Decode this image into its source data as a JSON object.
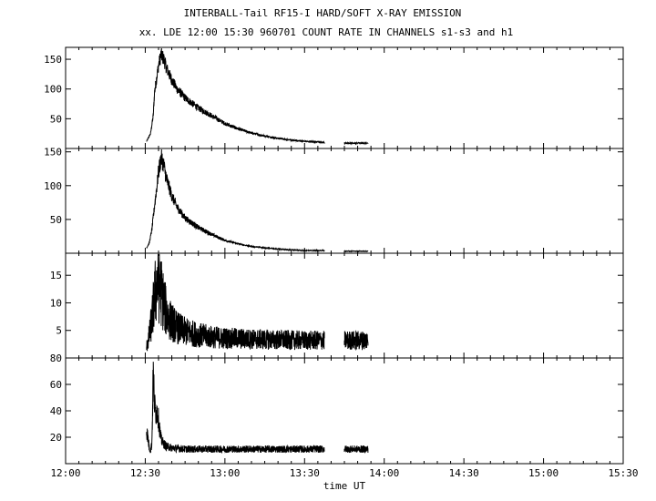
{
  "chart_data": {
    "type": "line",
    "title": "INTERBALL-Tail RF15-I HARD/SOFT X-RAY EMISSION",
    "subtitle": "xx. LDE 12:00 15:30 960701  COUNT RATE IN CHANNELS s1-s3 and h1",
    "xlabel": "time UT",
    "x_ticks": [
      "12:00",
      "12:30",
      "13:00",
      "13:30",
      "14:00",
      "14:30",
      "15:00",
      "15:30"
    ],
    "xlim": [
      0,
      210
    ],
    "x_unit": "minutes after 12:00",
    "data_segments": [
      [
        30.5,
        97.5
      ],
      [
        105,
        114
      ]
    ],
    "panels": [
      {
        "ylim": [
          0,
          170
        ],
        "y_ticks": [
          50,
          100,
          150
        ],
        "series": {
          "x": [
            30.5,
            32,
            33,
            33.5,
            35,
            36,
            37,
            38,
            40,
            42,
            45,
            50,
            55,
            60,
            65,
            70,
            75,
            80,
            85,
            90,
            95,
            97.5,
            105,
            114
          ],
          "y": [
            12,
            25,
            55,
            95,
            140,
            158,
            150,
            135,
            115,
            100,
            85,
            68,
            55,
            42,
            33,
            26,
            21,
            17,
            14,
            12,
            11,
            10,
            9,
            9
          ]
        }
      },
      {
        "ylim": [
          0,
          155
        ],
        "y_ticks": [
          50,
          100,
          150
        ],
        "series": {
          "x": [
            30.5,
            31.5,
            32.5,
            33.5,
            35,
            36,
            37,
            38,
            40,
            42,
            45,
            50,
            55,
            60,
            65,
            70,
            75,
            80,
            85,
            90,
            95,
            97.5,
            105,
            114
          ],
          "y": [
            8,
            15,
            35,
            70,
            120,
            142,
            130,
            110,
            85,
            68,
            52,
            38,
            28,
            19,
            14,
            10,
            8,
            6,
            5,
            4,
            4,
            4,
            3,
            3
          ]
        }
      },
      {
        "ylim": [
          0,
          19
        ],
        "y_ticks": [
          5,
          10,
          15
        ],
        "series": {
          "x": [
            30.5,
            31.5,
            32.5,
            33.5,
            34.5,
            35.5,
            36.5,
            37.5,
            38.5,
            40,
            42,
            45,
            50,
            55,
            60,
            70,
            80,
            90,
            97.5,
            105,
            114
          ],
          "y": [
            2,
            4,
            7,
            11,
            14,
            13,
            11,
            9,
            7.5,
            6.5,
            5.5,
            4.8,
            4.2,
            3.8,
            3.6,
            3.4,
            3.3,
            3.2,
            3.2,
            3.2,
            3.2
          ]
        }
      },
      {
        "ylim": [
          0,
          80
        ],
        "y_ticks": [
          20,
          40,
          60,
          80
        ],
        "series": {
          "x": [
            30.5,
            31,
            31.5,
            32,
            32.5,
            33,
            33.5,
            34,
            34.5,
            35,
            35.5,
            36,
            37,
            38,
            40,
            45,
            50,
            60,
            70,
            80,
            90,
            97.5,
            105,
            114
          ],
          "y": [
            25,
            20,
            12,
            10,
            15,
            68,
            45,
            38,
            40,
            33,
            25,
            18,
            15,
            13,
            12,
            11,
            11,
            11,
            11,
            11,
            11,
            11,
            11,
            11
          ]
        }
      }
    ]
  }
}
